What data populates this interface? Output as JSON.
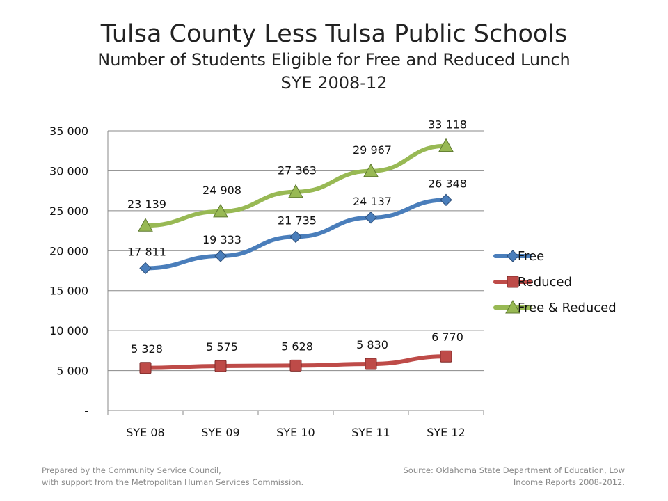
{
  "header": {
    "title": "Tulsa County Less Tulsa Public Schools",
    "subtitle_line1": "Number of Students Eligible for Free and Reduced Lunch",
    "subtitle_line2": "SYE 2008-12"
  },
  "footer": {
    "left_line1": "Prepared by the Community Service Council,",
    "left_line2": "with support  from the Metropolitan Human Services Commission.",
    "right_line1": "Source:  Oklahoma State Department of Education, Low",
    "right_line2": "Income Reports 2008-2012."
  },
  "chart_data": {
    "type": "line",
    "title": "Tulsa County Less Tulsa Public Schools",
    "categories": [
      "SYE 08",
      "SYE 09",
      "SYE 10",
      "SYE 11",
      "SYE 12"
    ],
    "ylim": [
      0,
      35000
    ],
    "yticks": [
      0,
      5000,
      10000,
      15000,
      20000,
      25000,
      30000,
      35000
    ],
    "ytick_labels": [
      "-",
      "5 000",
      "10 000",
      "15 000",
      "20 000",
      "25 000",
      "30 000",
      "35 000"
    ],
    "grid": "horizontal",
    "legend_position": "right",
    "series": [
      {
        "name": "Free",
        "color": "#4a7ebb",
        "marker": "diamond",
        "values": [
          17811,
          19333,
          21735,
          24137,
          26348
        ],
        "labels": [
          "17 811",
          "19 333",
          "21 735",
          "24 137",
          "26 348"
        ]
      },
      {
        "name": "Reduced",
        "color": "#be4b48",
        "marker": "square",
        "values": [
          5328,
          5575,
          5628,
          5830,
          6770
        ],
        "labels": [
          "5 328",
          "5 575",
          "5 628",
          "5 830",
          "6 770"
        ]
      },
      {
        "name": "Free & Reduced",
        "color": "#98b954",
        "marker": "triangle",
        "values": [
          23139,
          24908,
          27363,
          29967,
          33118
        ],
        "labels": [
          "23 139",
          "24 908",
          "27 363",
          "29 967",
          "33 118"
        ]
      }
    ]
  }
}
